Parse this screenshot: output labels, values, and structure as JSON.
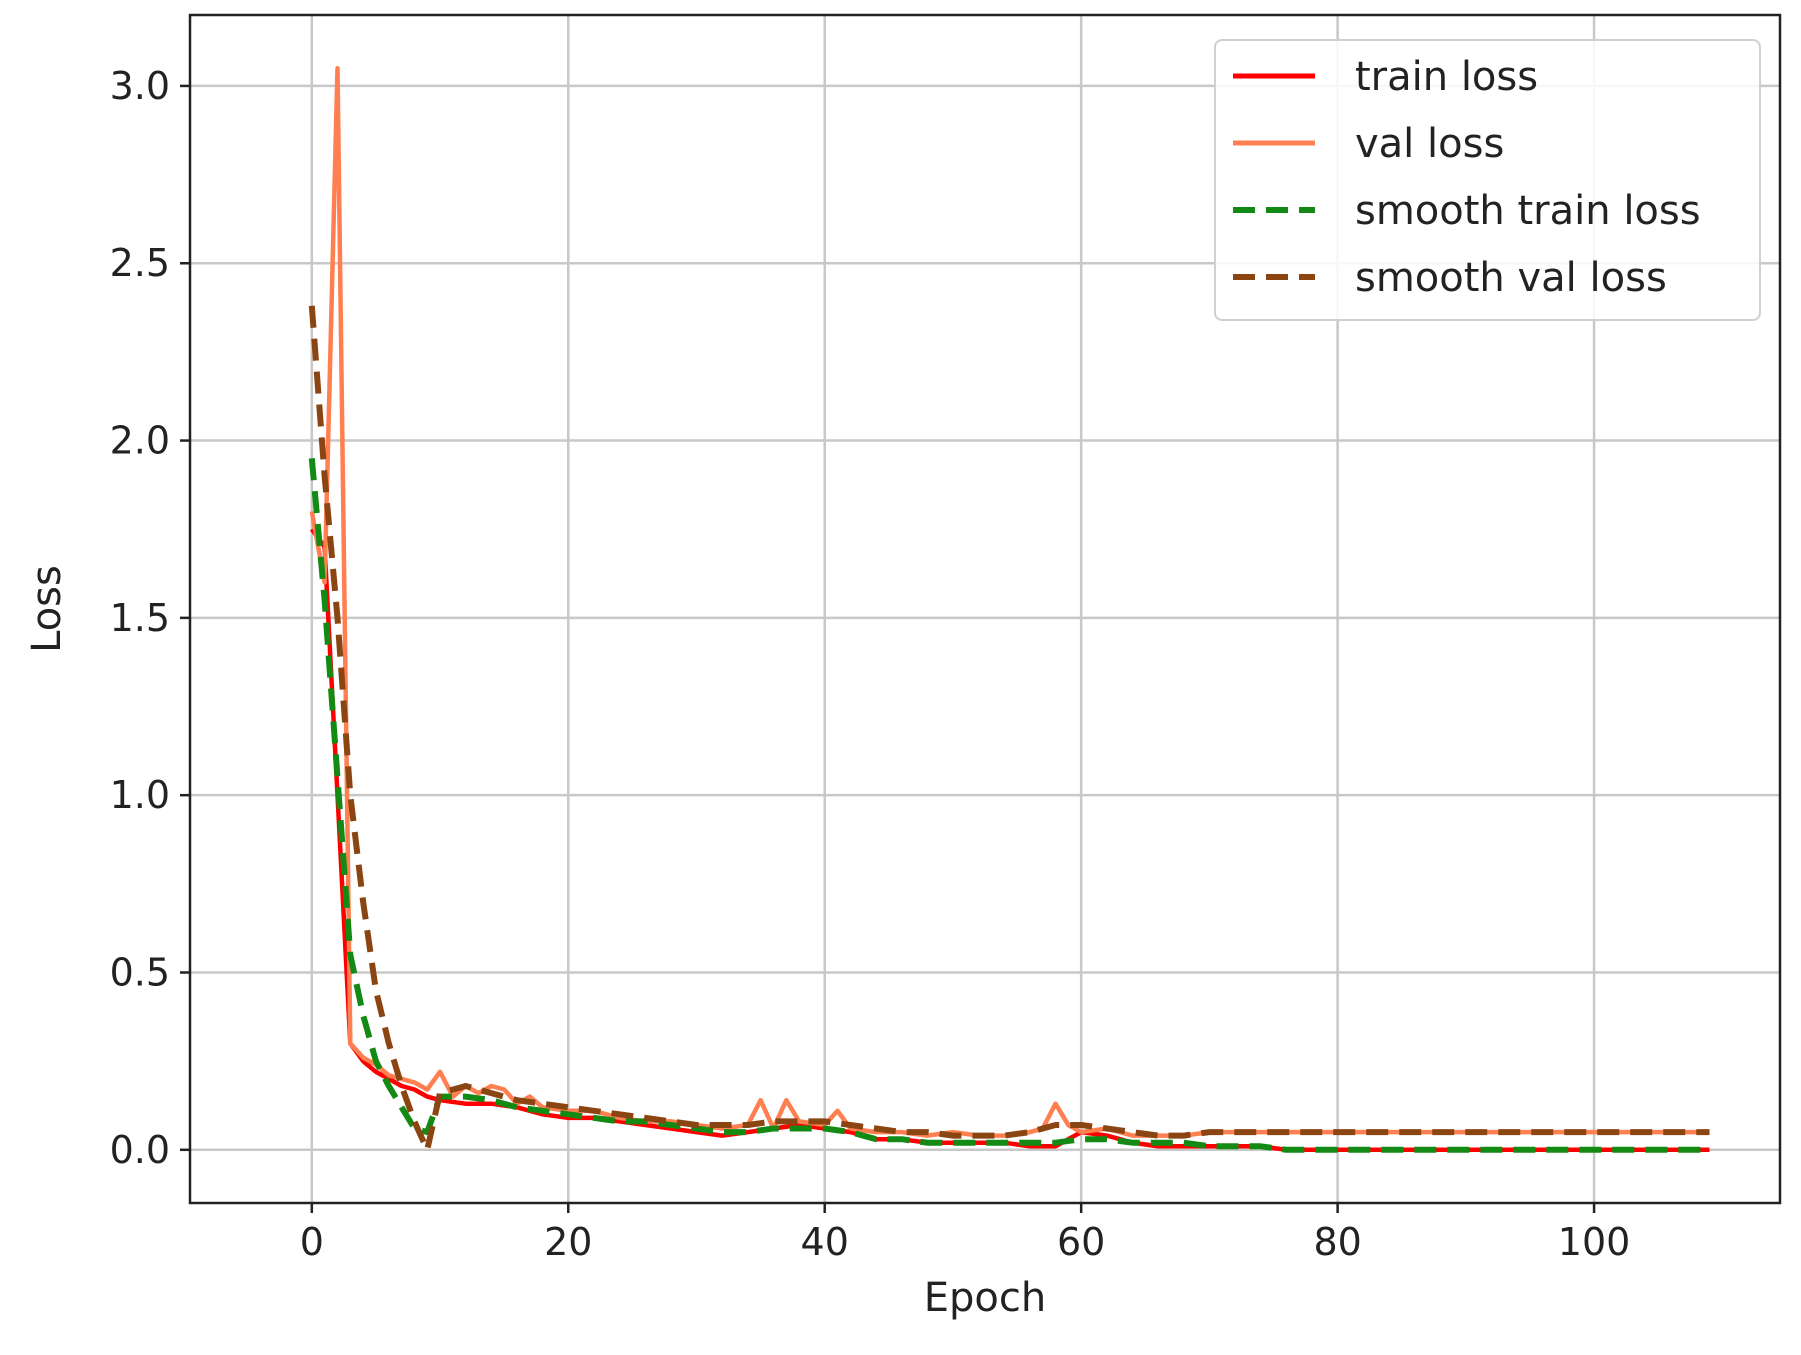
{
  "chart_data": {
    "type": "line",
    "xlabel": "Epoch",
    "ylabel": "Loss",
    "xlim": [
      -9.5,
      114.5
    ],
    "ylim": [
      -0.15,
      3.2
    ],
    "xticks": [
      0,
      20,
      40,
      60,
      80,
      100
    ],
    "yticks": [
      0.0,
      0.5,
      1.0,
      1.5,
      2.0,
      2.5,
      3.0
    ],
    "xtick_labels": [
      "0",
      "20",
      "40",
      "60",
      "80",
      "100"
    ],
    "ytick_labels": [
      "0.0",
      "0.5",
      "1.0",
      "1.5",
      "2.0",
      "2.5",
      "3.0"
    ],
    "grid": true,
    "legend_position": "top-right",
    "series": [
      {
        "name": "train loss",
        "color": "#ff0000",
        "dash": "solid",
        "x": [
          0,
          1,
          2,
          3,
          4,
          5,
          6,
          7,
          8,
          9,
          10,
          12,
          14,
          16,
          18,
          20,
          22,
          24,
          26,
          28,
          30,
          32,
          34,
          36,
          38,
          40,
          42,
          44,
          46,
          48,
          50,
          52,
          54,
          56,
          58,
          60,
          62,
          64,
          66,
          68,
          70,
          72,
          74,
          76,
          80,
          85,
          90,
          95,
          100,
          105,
          109
        ],
        "y": [
          1.75,
          1.7,
          1.0,
          0.3,
          0.25,
          0.22,
          0.2,
          0.18,
          0.17,
          0.15,
          0.14,
          0.13,
          0.13,
          0.12,
          0.1,
          0.09,
          0.09,
          0.08,
          0.07,
          0.06,
          0.05,
          0.04,
          0.05,
          0.06,
          0.07,
          0.06,
          0.05,
          0.03,
          0.03,
          0.02,
          0.02,
          0.02,
          0.02,
          0.01,
          0.01,
          0.05,
          0.04,
          0.02,
          0.01,
          0.01,
          0.01,
          0.01,
          0.01,
          0.0,
          0.0,
          0.0,
          0.0,
          0.0,
          0.0,
          0.0,
          0.0
        ]
      },
      {
        "name": "val loss",
        "color": "#ff7f50",
        "dash": "solid",
        "x": [
          0,
          1,
          2,
          3,
          4,
          5,
          6,
          7,
          8,
          9,
          10,
          11,
          12,
          13,
          14,
          15,
          16,
          17,
          18,
          20,
          22,
          24,
          26,
          28,
          30,
          32,
          34,
          35,
          36,
          37,
          38,
          40,
          41,
          42,
          44,
          46,
          48,
          50,
          52,
          54,
          56,
          57,
          58,
          59,
          60,
          62,
          64,
          66,
          68,
          70,
          72,
          75,
          80,
          85,
          90,
          95,
          100,
          105,
          109
        ],
        "y": [
          1.8,
          1.6,
          3.05,
          0.3,
          0.26,
          0.24,
          0.21,
          0.2,
          0.19,
          0.17,
          0.22,
          0.15,
          0.18,
          0.16,
          0.18,
          0.17,
          0.13,
          0.15,
          0.12,
          0.11,
          0.11,
          0.09,
          0.08,
          0.08,
          0.07,
          0.06,
          0.07,
          0.14,
          0.06,
          0.14,
          0.08,
          0.07,
          0.11,
          0.06,
          0.05,
          0.05,
          0.04,
          0.05,
          0.04,
          0.04,
          0.05,
          0.06,
          0.13,
          0.07,
          0.05,
          0.06,
          0.04,
          0.04,
          0.04,
          0.05,
          0.05,
          0.05,
          0.05,
          0.05,
          0.05,
          0.05,
          0.05,
          0.05,
          0.05
        ]
      },
      {
        "name": "smooth train loss",
        "color": "#138a13",
        "dash": "dashed",
        "x": [
          0,
          1,
          2,
          3,
          4,
          5,
          6,
          7,
          8,
          9,
          10,
          12,
          14,
          16,
          18,
          20,
          22,
          24,
          26,
          28,
          30,
          32,
          34,
          36,
          38,
          40,
          42,
          44,
          46,
          48,
          50,
          52,
          54,
          56,
          58,
          60,
          62,
          64,
          66,
          68,
          70,
          72,
          74,
          76,
          80,
          85,
          90,
          95,
          100,
          105,
          109
        ],
        "y": [
          1.95,
          1.55,
          1.05,
          0.55,
          0.38,
          0.25,
          0.18,
          0.12,
          0.06,
          0.05,
          0.15,
          0.15,
          0.14,
          0.12,
          0.11,
          0.1,
          0.09,
          0.08,
          0.08,
          0.07,
          0.06,
          0.05,
          0.05,
          0.06,
          0.06,
          0.06,
          0.05,
          0.03,
          0.03,
          0.02,
          0.02,
          0.02,
          0.02,
          0.02,
          0.02,
          0.03,
          0.03,
          0.02,
          0.02,
          0.02,
          0.01,
          0.01,
          0.01,
          0.0,
          0.0,
          0.0,
          0.0,
          0.0,
          0.0,
          0.0,
          0.0
        ]
      },
      {
        "name": "smooth val loss",
        "color": "#8b4513",
        "dash": "dashed",
        "x": [
          0,
          1,
          2,
          3,
          4,
          5,
          6,
          7,
          8,
          9,
          10,
          12,
          14,
          16,
          18,
          20,
          22,
          24,
          26,
          28,
          30,
          32,
          34,
          36,
          38,
          40,
          42,
          44,
          46,
          48,
          50,
          52,
          54,
          56,
          58,
          60,
          62,
          64,
          66,
          68,
          70,
          72,
          75,
          80,
          85,
          90,
          95,
          100,
          105,
          109
        ],
        "y": [
          2.38,
          1.9,
          1.5,
          1.0,
          0.7,
          0.45,
          0.3,
          0.18,
          0.08,
          0.0,
          0.16,
          0.18,
          0.16,
          0.14,
          0.13,
          0.12,
          0.11,
          0.1,
          0.09,
          0.08,
          0.07,
          0.07,
          0.07,
          0.08,
          0.08,
          0.08,
          0.07,
          0.06,
          0.05,
          0.05,
          0.04,
          0.04,
          0.04,
          0.05,
          0.07,
          0.07,
          0.06,
          0.05,
          0.04,
          0.04,
          0.05,
          0.05,
          0.05,
          0.05,
          0.05,
          0.05,
          0.05,
          0.05,
          0.05,
          0.05
        ]
      }
    ]
  }
}
